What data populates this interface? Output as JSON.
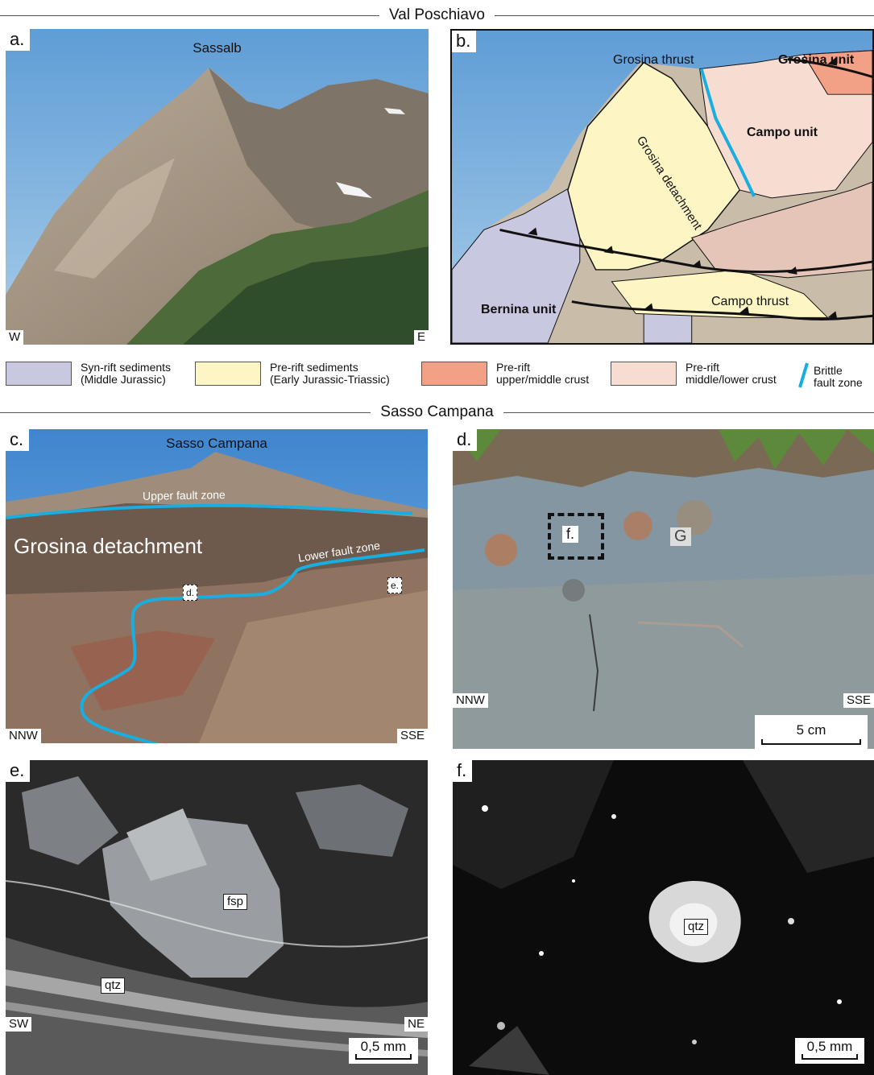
{
  "sections": {
    "top_title": "Val Poschiavo",
    "middle_title": "Sasso Campana"
  },
  "panel_a": {
    "label": "a.",
    "peak": "Sassalb",
    "left_dir": "W",
    "right_dir": "E"
  },
  "panel_b": {
    "label": "b.",
    "grosina_thrust": "Grosina thrust",
    "grosina_unit": "Grosina unit",
    "grosina_detachment": "Grosina detachment",
    "campo_unit": "Campo unit",
    "campo_thrust": "Campo thrust",
    "bernina_unit": "Bernina unit"
  },
  "legend": [
    {
      "line1": "Syn-rift sediments",
      "line2": "(Middle Jurassic)",
      "color": "#c8c8e0"
    },
    {
      "line1": "Pre-rift sediments",
      "line2": "(Early Jurassic-Triassic)",
      "color": "#fdf6c4"
    },
    {
      "line1": "Pre-rift",
      "line2": "upper/middle crust",
      "color": "#f2a086"
    },
    {
      "line1": "Pre-rift",
      "line2": "middle/lower crust",
      "color": "#f7dcd2"
    },
    {
      "line1": "Brittle",
      "line2": "fault zone",
      "color": "#19aee0"
    }
  ],
  "panel_c": {
    "label": "c.",
    "peak": "Sasso Campana",
    "upper_fault": "Upper fault zone",
    "detachment": "Grosina detachment",
    "lower_fault": "Lower fault zone",
    "marker_d": "d.",
    "marker_e": "e.",
    "left_dir": "NNW",
    "right_dir": "SSE"
  },
  "panel_d": {
    "label": "d.",
    "marker_f": "f.",
    "marker_g": "G",
    "left_dir": "NNW",
    "right_dir": "SSE",
    "scale": "5 cm"
  },
  "panel_e": {
    "label": "e.",
    "fsp": "fsp",
    "qtz": "qtz",
    "left_dir": "SW",
    "right_dir": "NE",
    "scale": "0,5 mm"
  },
  "panel_f": {
    "label": "f.",
    "qtz": "qtz",
    "scale": "0,5 mm"
  }
}
